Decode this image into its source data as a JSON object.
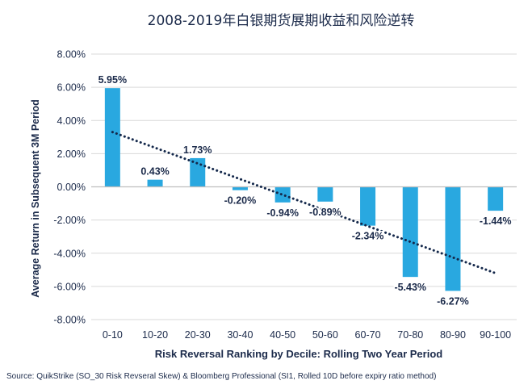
{
  "chart_data": {
    "type": "bar",
    "title": "2008-2019年白银期货展期收益和风险逆转",
    "xlabel": "Risk Reversal Ranking by Decile: Rolling Two Year Period",
    "ylabel": "Average Return in Subsequent 3M Period",
    "categories": [
      "0-10",
      "10-20",
      "20-30",
      "30-40",
      "40-50",
      "50-60",
      "60-70",
      "70-80",
      "80-90",
      "90-100"
    ],
    "values": [
      5.95,
      0.43,
      1.73,
      -0.2,
      -0.94,
      -0.89,
      -2.34,
      -5.43,
      -6.27,
      -1.44
    ],
    "data_labels": [
      "5.95%",
      "0.43%",
      "1.73%",
      "-0.20%",
      "-0.94%",
      "-0.89%",
      "-2.34%",
      "-5.43%",
      "-6.27%",
      "-1.44%"
    ],
    "y_ticks": [
      8,
      6,
      4,
      2,
      0,
      -2,
      -4,
      -6,
      -8
    ],
    "y_tick_labels": [
      "8.00%",
      "6.00%",
      "4.00%",
      "2.00%",
      "0.00%",
      "-2.00%",
      "-4.00%",
      "-6.00%",
      "-8.00%"
    ],
    "ylim": [
      -8,
      8
    ],
    "grid": true,
    "legend": "none",
    "trendline": {
      "style": "dotted",
      "start_value": 3.3,
      "end_value": -5.2
    },
    "colors": {
      "bar": "#29a8e0",
      "trend": "#14284b",
      "text": "#1b2a4a",
      "grid": "#d9d9d9"
    }
  },
  "source_note": "Source: QuikStrike (SO_30 Risk Revseral Skew) & Bloomberg Professional (SI1, Rolled 10D before expiry ratio method)"
}
